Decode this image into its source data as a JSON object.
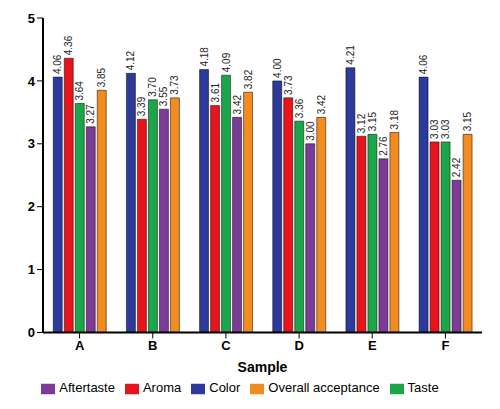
{
  "chart_data": {
    "type": "bar",
    "x_label": "Sample",
    "categories": [
      "A",
      "B",
      "C",
      "D",
      "E",
      "F"
    ],
    "series": [
      {
        "name": "Color",
        "color": "#2b3a9b",
        "values": [
          4.06,
          4.12,
          4.18,
          4.0,
          4.21,
          4.06
        ],
        "value_labels": [
          "4.06",
          "4.12",
          "4.18",
          "4.00",
          "4.21",
          "4.06"
        ]
      },
      {
        "name": "Aroma",
        "color": "#e8141b",
        "values": [
          4.36,
          3.39,
          3.61,
          3.73,
          3.12,
          3.03
        ],
        "value_labels": [
          "4.36",
          "3.39",
          "3.61",
          "3.73",
          "3.12",
          "3.03"
        ]
      },
      {
        "name": "Taste",
        "color": "#1ba64a",
        "values": [
          3.64,
          3.7,
          4.09,
          3.36,
          3.15,
          3.03
        ],
        "value_labels": [
          "3.64",
          "3.70",
          "4.09",
          "3.36",
          "3.15",
          "3.03"
        ]
      },
      {
        "name": "Aftertaste",
        "color": "#7b3b97",
        "values": [
          3.27,
          3.55,
          3.42,
          3.0,
          2.76,
          2.42
        ],
        "value_labels": [
          "3.27",
          "3.55",
          "3.42",
          "3.00",
          "2.76",
          "2.42"
        ]
      },
      {
        "name": "Overall acceptance",
        "color": "#f28c1e",
        "values": [
          3.85,
          3.73,
          3.82,
          3.42,
          3.18,
          3.15
        ],
        "value_labels": [
          "3.85",
          "3.73",
          "3.82",
          "3.42",
          "3.18",
          "3.15"
        ]
      }
    ],
    "ylim": [
      0,
      5
    ],
    "yticks": [
      0,
      1,
      2,
      3,
      4,
      5
    ],
    "grid": false,
    "legend": "bottom",
    "data_labels": true
  }
}
